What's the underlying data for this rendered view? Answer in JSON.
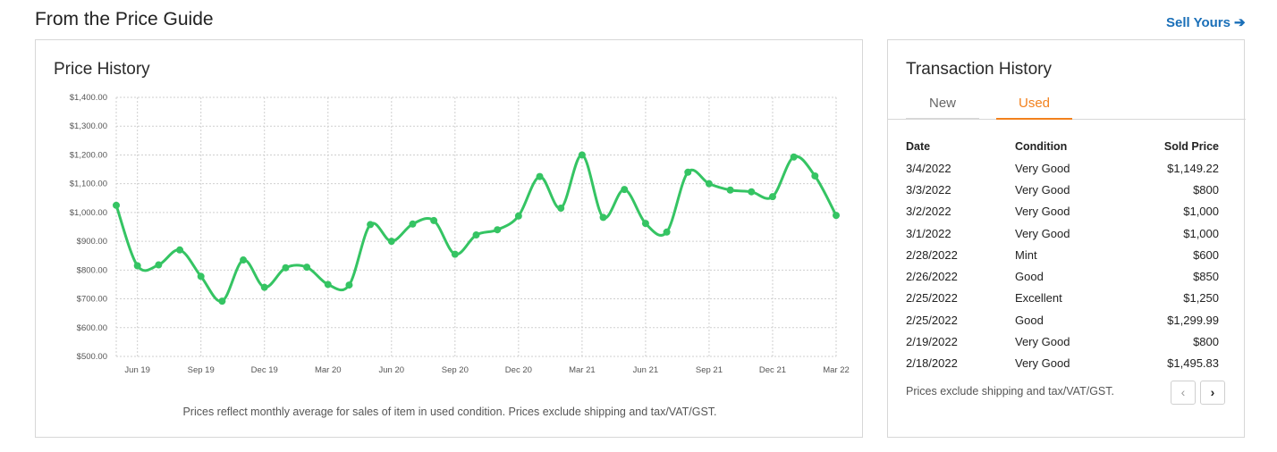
{
  "header": {
    "title": "From the Price Guide",
    "sell_link": "Sell Yours",
    "sell_arrow": "➔"
  },
  "price_history": {
    "title": "Price History",
    "note": "Prices reflect monthly average for sales of item in used condition. Prices exclude shipping and tax/VAT/GST."
  },
  "transaction_history": {
    "title": "Transaction History",
    "tabs": [
      {
        "label": "New",
        "active": false
      },
      {
        "label": "Used",
        "active": true
      }
    ],
    "columns": [
      "Date",
      "Condition",
      "Sold Price"
    ],
    "rows": [
      {
        "date": "3/4/2022",
        "condition": "Very Good",
        "price": "$1,149.22"
      },
      {
        "date": "3/3/2022",
        "condition": "Very Good",
        "price": "$800"
      },
      {
        "date": "3/2/2022",
        "condition": "Very Good",
        "price": "$1,000"
      },
      {
        "date": "3/1/2022",
        "condition": "Very Good",
        "price": "$1,000"
      },
      {
        "date": "2/28/2022",
        "condition": "Mint",
        "price": "$600"
      },
      {
        "date": "2/26/2022",
        "condition": "Good",
        "price": "$850"
      },
      {
        "date": "2/25/2022",
        "condition": "Excellent",
        "price": "$1,250"
      },
      {
        "date": "2/25/2022",
        "condition": "Good",
        "price": "$1,299.99"
      },
      {
        "date": "2/19/2022",
        "condition": "Very Good",
        "price": "$800"
      },
      {
        "date": "2/18/2022",
        "condition": "Very Good",
        "price": "$1,495.83"
      }
    ],
    "note": "Prices exclude shipping and tax/VAT/GST.",
    "pager_prev": "‹",
    "pager_next": "›"
  },
  "colors": {
    "line": "#35c463",
    "accent": "#f2811d",
    "link": "#1a6fb8"
  },
  "chart_data": {
    "type": "line",
    "title": "Price History",
    "ylim": [
      500,
      1400
    ],
    "y_ticks": [
      500,
      600,
      700,
      800,
      900,
      1000,
      1100,
      1200,
      1300,
      1400
    ],
    "y_tick_labels": [
      "$500.00",
      "$600.00",
      "$700.00",
      "$800.00",
      "$900.00",
      "$1,000.00",
      "$1,100.00",
      "$1,200.00",
      "$1,300.00",
      "$1,400.00"
    ],
    "x_ticks": [
      "2019-06",
      "2019-09",
      "2019-12",
      "2020-03",
      "2020-06",
      "2020-09",
      "2020-12",
      "2021-03",
      "2021-06",
      "2021-09",
      "2021-12",
      "2022-03"
    ],
    "x_tick_labels": [
      "Jun 19",
      "Sep 19",
      "Dec 19",
      "Mar 20",
      "Jun 20",
      "Sep 20",
      "Dec 20",
      "Mar 21",
      "Jun 21",
      "Sep 21",
      "Dec 21",
      "Mar 22"
    ],
    "grid": true,
    "series": [
      {
        "x": [
          "2019-05",
          "2019-06",
          "2019-07",
          "2019-08",
          "2019-09",
          "2019-10",
          "2019-11",
          "2019-12",
          "2020-01",
          "2020-02",
          "2020-03",
          "2020-04",
          "2020-05",
          "2020-06",
          "2020-07",
          "2020-08",
          "2020-09",
          "2020-10",
          "2020-11",
          "2020-12",
          "2021-01",
          "2021-02",
          "2021-03",
          "2021-04",
          "2021-05",
          "2021-06",
          "2021-07",
          "2021-08",
          "2021-09",
          "2021-10",
          "2021-11",
          "2021-12",
          "2022-01",
          "2022-02",
          "2022-03"
        ],
        "values": [
          1025,
          815,
          818,
          870,
          778,
          692,
          835,
          740,
          808,
          810,
          750,
          748,
          958,
          900,
          960,
          972,
          855,
          922,
          940,
          988,
          1125,
          1015,
          1200,
          983,
          1080,
          962,
          932,
          1140,
          1100,
          1078,
          1072,
          1055,
          1193,
          1127,
          990
        ]
      }
    ]
  }
}
